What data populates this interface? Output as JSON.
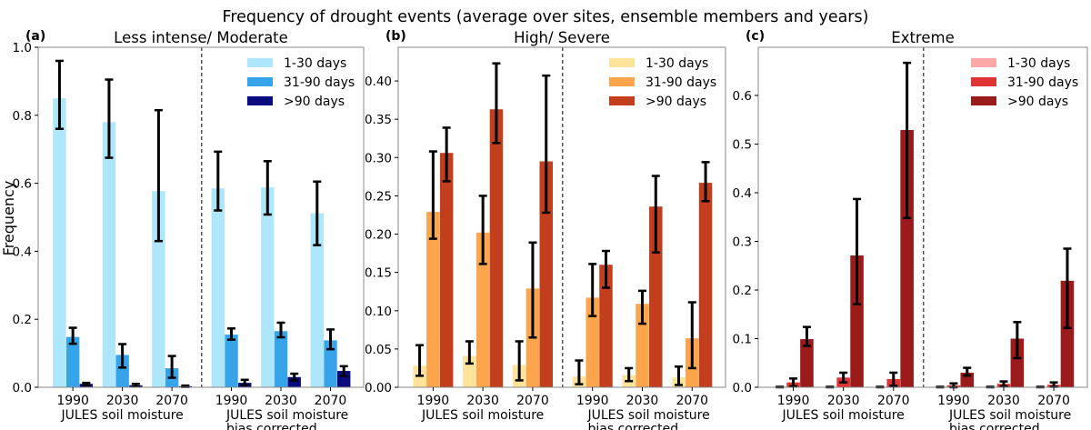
{
  "chart_data": {
    "type": "bar",
    "title": "Frequency of drought events (average over sites, ensemble members and years)",
    "ylabel": "Frequency",
    "categories": [
      "1990",
      "2030",
      "2070",
      "1990",
      "2030",
      "2070"
    ],
    "group_labels": [
      [
        "JULES soil moisture"
      ],
      [
        "JULES soil moisture",
        "bias corrected"
      ]
    ],
    "legend_placement": "top-right",
    "panels": [
      {
        "tag": "(a)",
        "title": "Less intense/ Moderate",
        "ylim": [
          0,
          1.0
        ],
        "yticks": [
          0.0,
          0.2,
          0.4,
          0.6,
          0.8,
          1.0
        ],
        "ytick_labels": [
          "0.0",
          "0.2",
          "0.4",
          "0.6",
          "0.8",
          "1.0"
        ],
        "series": [
          {
            "name": "1-30 days",
            "color": "#aee7fb",
            "values": [
              0.85,
              0.78,
              0.577,
              0.585,
              0.588,
              0.512
            ],
            "err_low": [
              0.76,
              0.675,
              0.43,
              0.52,
              0.508,
              0.418
            ],
            "err_high": [
              0.96,
              0.905,
              0.815,
              0.693,
              0.665,
              0.605
            ]
          },
          {
            "name": "31-90 days",
            "color": "#37a3e8",
            "values": [
              0.148,
              0.095,
              0.056,
              0.155,
              0.165,
              0.138
            ],
            "err_low": [
              0.128,
              0.058,
              0.028,
              0.14,
              0.147,
              0.112
            ],
            "err_high": [
              0.175,
              0.127,
              0.092,
              0.173,
              0.19,
              0.17
            ]
          },
          {
            "name": ">90 days",
            "color": "#0b0b80",
            "values": [
              0.01,
              0.006,
              0.003,
              0.013,
              0.03,
              0.048
            ],
            "err_low": [
              0.006,
              0.002,
              0.001,
              0.006,
              0.02,
              0.033
            ],
            "err_high": [
              0.013,
              0.01,
              0.005,
              0.022,
              0.04,
              0.062
            ]
          }
        ]
      },
      {
        "tag": "(b)",
        "title": "High/ Severe",
        "ylim": [
          0,
          0.444
        ],
        "yticks": [
          0.0,
          0.05,
          0.1,
          0.15,
          0.2,
          0.25,
          0.3,
          0.35,
          0.4
        ],
        "ytick_labels": [
          "0.00",
          "0.05",
          "0.10",
          "0.15",
          "0.20",
          "0.25",
          "0.30",
          "0.35",
          "0.40"
        ],
        "series": [
          {
            "name": "1-30 days",
            "color": "#fee39b",
            "values": [
              0.028,
              0.041,
              0.029,
              0.014,
              0.016,
              0.013
            ],
            "err_low": [
              0.015,
              0.031,
              0.009,
              0.004,
              0.008,
              0.003
            ],
            "err_high": [
              0.055,
              0.06,
              0.06,
              0.035,
              0.025,
              0.027
            ]
          },
          {
            "name": "31-90 days",
            "color": "#fca54c",
            "values": [
              0.229,
              0.202,
              0.129,
              0.117,
              0.109,
              0.064
            ],
            "err_low": [
              0.194,
              0.161,
              0.065,
              0.093,
              0.083,
              0.025
            ],
            "err_high": [
              0.308,
              0.25,
              0.189,
              0.161,
              0.126,
              0.111
            ]
          },
          {
            "name": ">90 days",
            "color": "#c23e1c",
            "values": [
              0.306,
              0.363,
              0.295,
              0.16,
              0.236,
              0.267
            ],
            "err_low": [
              0.269,
              0.319,
              0.228,
              0.13,
              0.176,
              0.243
            ],
            "err_high": [
              0.339,
              0.423,
              0.407,
              0.178,
              0.276,
              0.294
            ]
          }
        ]
      },
      {
        "tag": "(c)",
        "title": "Extreme",
        "ylim": [
          0,
          0.699
        ],
        "yticks": [
          0.0,
          0.1,
          0.2,
          0.3,
          0.4,
          0.5,
          0.6
        ],
        "ytick_labels": [
          "0.0",
          "0.1",
          "0.2",
          "0.3",
          "0.4",
          "0.5",
          "0.6"
        ],
        "series": [
          {
            "name": "1-30 days",
            "color": "#fca8a8",
            "values": [
              0.0005,
              0.0005,
              0.0005,
              0.0005,
              0.0005,
              0.0005
            ],
            "err_low": [
              0,
              0,
              0,
              0,
              0,
              0
            ],
            "err_high": [
              0.001,
              0.001,
              0.001,
              0.001,
              0.001,
              0.001
            ]
          },
          {
            "name": "31-90 days",
            "color": "#e03333",
            "values": [
              0.01,
              0.02,
              0.017,
              0.004,
              0.007,
              0.005
            ],
            "err_low": [
              0.002,
              0.01,
              0.003,
              0.0,
              0.002,
              0.001
            ],
            "err_high": [
              0.018,
              0.03,
              0.03,
              0.008,
              0.012,
              0.01
            ]
          },
          {
            "name": ">90 days",
            "color": "#9b1a1c",
            "values": [
              0.099,
              0.271,
              0.529,
              0.03,
              0.1,
              0.219
            ],
            "err_low": [
              0.085,
              0.171,
              0.348,
              0.024,
              0.06,
              0.122
            ],
            "err_high": [
              0.124,
              0.387,
              0.667,
              0.04,
              0.134,
              0.285
            ]
          }
        ]
      }
    ]
  }
}
